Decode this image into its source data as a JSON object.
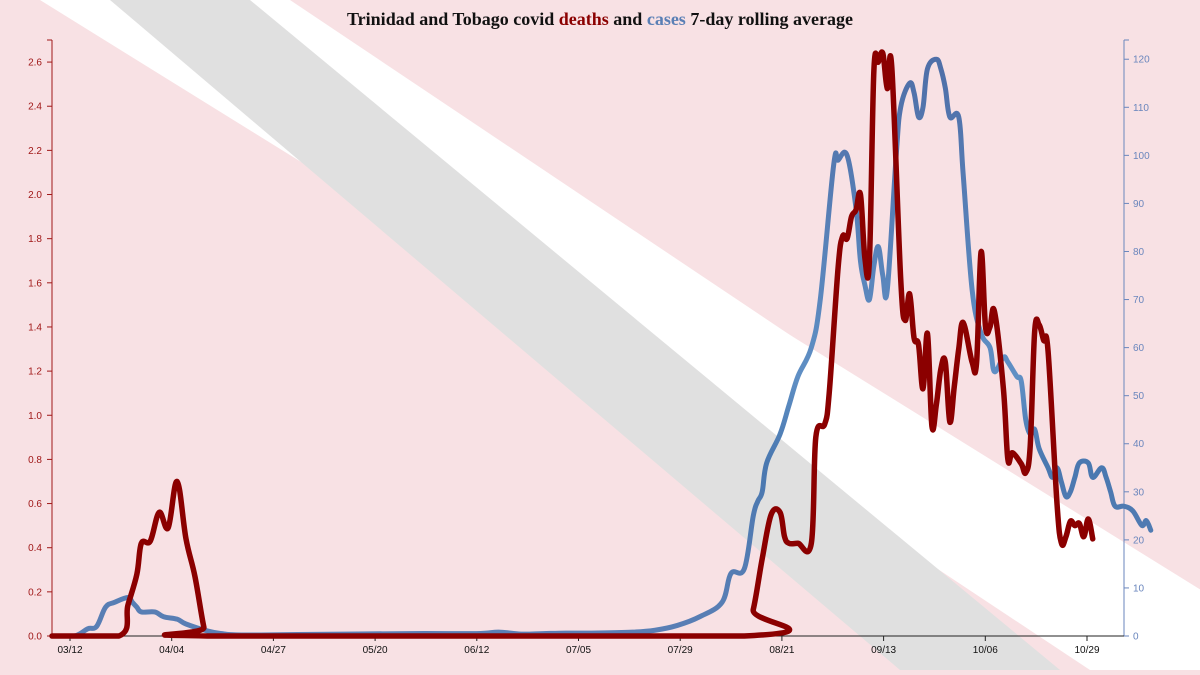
{
  "title": {
    "segments": [
      {
        "text": "Trinidad and Tobago covid ",
        "color": "#111111"
      },
      {
        "text": "deaths",
        "color": "#8b0000"
      },
      {
        "text": " and ",
        "color": "#111111"
      },
      {
        "text": "cases",
        "color": "#5a7fb5"
      },
      {
        "text": " 7-day rolling average",
        "color": "#111111"
      }
    ]
  },
  "colors": {
    "background": "#f8e1e4",
    "stripe_white": "#ffffff",
    "stripe_gray": "#e0e0e0",
    "deaths": "#8b0000",
    "cases": "#5a7fb5",
    "left_axis": "#a01818",
    "right_axis": "#6a86bd",
    "x_axis": "#222222"
  },
  "chart_data": {
    "type": "line",
    "title": "Trinidad and Tobago covid deaths and cases 7-day rolling average",
    "x_tick_labels": [
      "03/12",
      "04/04",
      "04/27",
      "05/20",
      "06/12",
      "07/05",
      "07/29",
      "08/21",
      "09/13",
      "10/06",
      "10/29"
    ],
    "x_range_days": [
      0,
      240
    ],
    "y_left": {
      "series": "deaths",
      "ylim": [
        0,
        2.7
      ],
      "ticks": [
        "0.0",
        "0.2",
        "0.4",
        "0.6",
        "0.8",
        "1.0",
        "1.2",
        "1.4",
        "1.6",
        "1.8",
        "2.0",
        "2.2",
        "2.4",
        "2.6"
      ]
    },
    "y_right": {
      "series": "cases",
      "ylim": [
        0,
        124
      ],
      "ticks": [
        "0",
        "10",
        "20",
        "30",
        "40",
        "50",
        "60",
        "70",
        "80",
        "90",
        "100",
        "110",
        "120"
      ]
    },
    "grid": false,
    "series": [
      {
        "name": "deaths",
        "axis": "left",
        "points": [
          [
            0,
            0
          ],
          [
            15,
            0
          ],
          [
            17,
            0.14
          ],
          [
            19,
            0.28
          ],
          [
            20,
            0.42
          ],
          [
            22,
            0.43
          ],
          [
            24,
            0.56
          ],
          [
            26,
            0.49
          ],
          [
            28,
            0.7
          ],
          [
            30,
            0.44
          ],
          [
            32,
            0.27
          ],
          [
            34,
            0.04
          ],
          [
            35,
            0
          ],
          [
            155,
            0
          ],
          [
            157,
            0.12
          ],
          [
            159,
            0.35
          ],
          [
            161,
            0.55
          ],
          [
            163,
            0.56
          ],
          [
            164,
            0.45
          ],
          [
            165,
            0.42
          ],
          [
            167,
            0.42
          ],
          [
            170,
            0.42
          ],
          [
            171,
            0.9
          ],
          [
            173,
            0.96
          ],
          [
            174,
            1.1
          ],
          [
            176,
            1.67
          ],
          [
            177,
            1.81
          ],
          [
            178,
            1.8
          ],
          [
            179,
            1.9
          ],
          [
            180,
            1.93
          ],
          [
            181,
            2.0
          ],
          [
            182,
            1.71
          ],
          [
            183,
            1.7
          ],
          [
            184,
            2.56
          ],
          [
            185,
            2.6
          ],
          [
            186,
            2.64
          ],
          [
            187,
            2.48
          ],
          [
            188,
            2.58
          ],
          [
            190,
            1.62
          ],
          [
            191,
            1.43
          ],
          [
            192,
            1.55
          ],
          [
            193,
            1.35
          ],
          [
            194,
            1.32
          ],
          [
            195,
            1.12
          ],
          [
            196,
            1.37
          ],
          [
            197,
            0.95
          ],
          [
            198,
            1.05
          ],
          [
            199,
            1.21
          ],
          [
            200,
            1.24
          ],
          [
            201,
            0.97
          ],
          [
            202,
            1.13
          ],
          [
            203,
            1.3
          ],
          [
            204,
            1.42
          ],
          [
            206,
            1.24
          ],
          [
            207,
            1.24
          ],
          [
            208,
            1.74
          ],
          [
            209,
            1.4
          ],
          [
            210,
            1.4
          ],
          [
            211,
            1.47
          ],
          [
            213,
            1.12
          ],
          [
            214,
            0.8
          ],
          [
            215,
            0.83
          ],
          [
            217,
            0.78
          ],
          [
            218,
            0.74
          ],
          [
            219,
            0.86
          ],
          [
            220,
            1.38
          ],
          [
            221,
            1.41
          ],
          [
            222,
            1.34
          ],
          [
            223,
            1.29
          ],
          [
            225,
            0.6
          ],
          [
            226,
            0.42
          ],
          [
            227,
            0.45
          ],
          [
            228,
            0.52
          ],
          [
            229,
            0.5
          ],
          [
            230,
            0.51
          ],
          [
            231,
            0.45
          ],
          [
            232,
            0.53
          ],
          [
            233,
            0.44
          ]
        ]
      },
      {
        "name": "cases",
        "axis": "right",
        "points": [
          [
            0,
            0
          ],
          [
            5,
            0
          ],
          [
            8,
            1.5
          ],
          [
            10,
            2
          ],
          [
            12,
            6
          ],
          [
            14,
            7
          ],
          [
            17,
            8
          ],
          [
            18,
            7
          ],
          [
            19,
            6
          ],
          [
            20,
            5
          ],
          [
            23,
            5
          ],
          [
            25,
            4
          ],
          [
            28,
            3.5
          ],
          [
            30,
            2.5
          ],
          [
            35,
            1
          ],
          [
            38,
            0.5
          ],
          [
            40,
            0.3
          ],
          [
            45,
            0.2
          ],
          [
            55,
            0.3
          ],
          [
            80,
            0.5
          ],
          [
            95,
            0.5
          ],
          [
            100,
            0.8
          ],
          [
            105,
            0.4
          ],
          [
            110,
            0.5
          ],
          [
            115,
            0.6
          ],
          [
            120,
            0.6
          ],
          [
            130,
            0.8
          ],
          [
            135,
            1.2
          ],
          [
            140,
            2.2
          ],
          [
            145,
            4
          ],
          [
            150,
            7
          ],
          [
            152,
            13
          ],
          [
            155,
            14
          ],
          [
            157,
            25
          ],
          [
            158,
            28
          ],
          [
            159,
            30
          ],
          [
            160,
            36
          ],
          [
            163,
            42
          ],
          [
            165,
            48
          ],
          [
            167,
            54
          ],
          [
            170,
            60
          ],
          [
            172,
            70
          ],
          [
            175,
            98
          ],
          [
            176,
            99
          ],
          [
            178,
            100
          ],
          [
            180,
            89
          ],
          [
            181,
            78
          ],
          [
            182,
            73
          ],
          [
            183,
            70
          ],
          [
            184,
            77
          ],
          [
            185,
            81
          ],
          [
            186,
            75
          ],
          [
            187,
            72
          ],
          [
            189,
            100
          ],
          [
            190,
            110
          ],
          [
            192,
            115
          ],
          [
            193,
            113
          ],
          [
            194,
            108
          ],
          [
            195,
            110
          ],
          [
            196,
            118
          ],
          [
            198,
            120
          ],
          [
            199,
            118
          ],
          [
            200,
            114
          ],
          [
            201,
            108
          ],
          [
            203,
            108
          ],
          [
            204,
            96
          ],
          [
            206,
            72
          ],
          [
            208,
            63
          ],
          [
            210,
            60
          ],
          [
            211,
            55
          ],
          [
            213,
            58
          ],
          [
            214,
            57
          ],
          [
            216,
            54
          ],
          [
            217,
            53
          ],
          [
            218,
            45
          ],
          [
            219,
            42
          ],
          [
            220,
            43
          ],
          [
            221,
            39
          ],
          [
            223,
            35
          ],
          [
            224,
            33
          ],
          [
            225,
            35
          ],
          [
            226,
            32
          ],
          [
            227,
            29
          ],
          [
            228,
            30
          ],
          [
            229,
            33
          ],
          [
            230,
            36
          ],
          [
            232,
            36
          ],
          [
            233,
            33
          ],
          [
            235,
            35
          ],
          [
            236,
            33
          ],
          [
            237,
            30
          ],
          [
            238,
            27
          ],
          [
            240,
            27
          ],
          [
            242,
            26
          ],
          [
            244,
            23
          ],
          [
            245,
            24
          ],
          [
            246,
            22
          ]
        ]
      }
    ]
  }
}
